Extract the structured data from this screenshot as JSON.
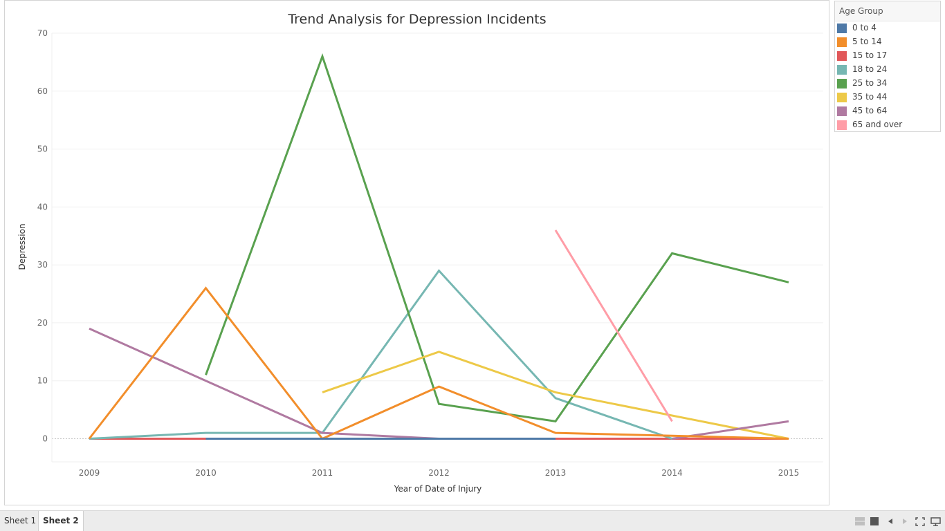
{
  "chart_data": {
    "type": "line",
    "title": "Trend Analysis for Depression Incidents",
    "xlabel": "Year of Date of Injury",
    "ylabel": "Depression",
    "x": [
      "2009",
      "2010",
      "2011",
      "2012",
      "2013",
      "2014",
      "2015"
    ],
    "y_ticks": [
      "0",
      "10",
      "20",
      "30",
      "40",
      "50",
      "60",
      "70"
    ],
    "ylim": [
      -4,
      70
    ],
    "grid": "horizontal",
    "legend_position": "right",
    "legend_title": "Age Group",
    "series": [
      {
        "name": "0 to 4",
        "color": "#4e79a7",
        "values": [
          null,
          0,
          0,
          0,
          0,
          null,
          null
        ]
      },
      {
        "name": "5 to 14",
        "color": "#f28e2b",
        "values": [
          0,
          26,
          0,
          9,
          1,
          0.5,
          0
        ]
      },
      {
        "name": "15 to 17",
        "color": "#e15759",
        "values": [
          0,
          0,
          null,
          null,
          0,
          0,
          0
        ]
      },
      {
        "name": "18 to 24",
        "color": "#76b7b2",
        "values": [
          0,
          1,
          1,
          29,
          7,
          0,
          null
        ]
      },
      {
        "name": "25 to 34",
        "color": "#59a14f",
        "values": [
          null,
          11,
          66,
          6,
          3,
          32,
          27
        ]
      },
      {
        "name": "35 to 44",
        "color": "#edc948",
        "values": [
          null,
          null,
          8,
          15,
          8,
          4,
          0
        ]
      },
      {
        "name": "45 to 64",
        "color": "#b07aa1",
        "values": [
          19,
          10,
          1,
          0,
          null,
          0,
          3
        ]
      },
      {
        "name": "65 and over",
        "color": "#ff9da7",
        "values": [
          null,
          null,
          null,
          null,
          36,
          3,
          null
        ]
      }
    ]
  },
  "tabs": [
    {
      "label": "Sheet 1",
      "active": false
    },
    {
      "label": "Sheet 2",
      "active": true
    }
  ]
}
